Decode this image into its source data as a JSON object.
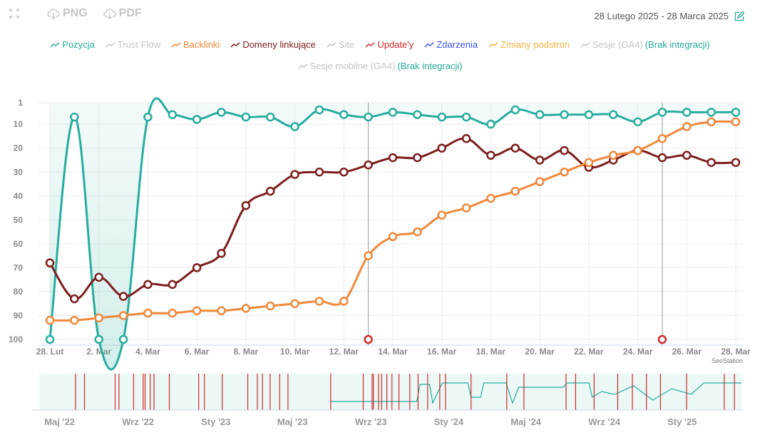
{
  "toolbar": {
    "fullscreen_icon": "expand-icon",
    "png_label": "PNG",
    "pdf_label": "PDF",
    "download_icon": "cloud-download-icon"
  },
  "date_range": {
    "label": "28 Lutego 2025 - 28 Marca 2025",
    "edit_icon": "edit-icon"
  },
  "legend": {
    "row1": [
      {
        "label": "Pozycja",
        "color": "#26ad9d"
      },
      {
        "label": "Trust Flow",
        "color": "#c4c4c4"
      },
      {
        "label": "Backlinki",
        "color": "#f0883a"
      },
      {
        "label": "Domeny linkujące",
        "color": "#7c1d1d"
      },
      {
        "label": "Site",
        "color": "#c4c4c4"
      },
      {
        "label": "Update'y",
        "color": "#d0282a"
      },
      {
        "label": "Zdarzenia",
        "color": "#3a55ee"
      },
      {
        "label": "Zmiany podstron",
        "color": "#f5b342"
      },
      {
        "label": "Sesje (GA4)",
        "color": "#c4c4c4",
        "note": "(Brak integracji)"
      }
    ],
    "row2": [
      {
        "label": "Sesje mobilne (GA4)",
        "color": "#c4c4c4",
        "note": "(Brak integracji)"
      }
    ]
  },
  "chart_data": {
    "type": "line",
    "x": [
      "28. Lut",
      "1. Mar",
      "2. Mar",
      "3. Mar",
      "4. Mar",
      "5. Mar",
      "6. Mar",
      "7. Mar",
      "8. Mar",
      "9. Mar",
      "10. Mar",
      "11. Mar",
      "12. Mar",
      "13. Mar",
      "14. Mar",
      "15. Mar",
      "16. Mar",
      "17. Mar",
      "18. Mar",
      "19. Mar",
      "20. Mar",
      "21. Mar",
      "22. Mar",
      "23. Mar",
      "24. Mar",
      "25. Mar",
      "26. Mar",
      "27. Mar",
      "28. Mar"
    ],
    "x_tick_labels": [
      "28. Lut",
      "2. Mar",
      "4. Mar",
      "6. Mar",
      "8. Mar",
      "10. Mar",
      "12. Mar",
      "14. Mar",
      "16. Mar",
      "18. Mar",
      "20. Mar",
      "22. Mar",
      "24. Mar",
      "26. Mar",
      "28. Mar"
    ],
    "y_ticks": [
      1,
      10,
      20,
      30,
      40,
      50,
      60,
      70,
      80,
      90,
      100
    ],
    "ylim": [
      1,
      100
    ],
    "y_reversed": true,
    "series": [
      {
        "name": "Pozycja",
        "color": "#26ad9d",
        "area": true,
        "values": [
          100,
          7,
          100,
          100,
          7,
          6,
          8,
          5,
          7,
          7,
          11,
          4,
          6,
          7,
          5,
          6,
          7,
          7,
          10,
          4,
          6,
          6,
          6,
          6,
          9,
          5,
          5,
          5,
          5
        ]
      },
      {
        "name": "Domeny linkujące",
        "color": "#7c1d1d",
        "values": [
          68,
          83,
          74,
          82,
          77,
          77,
          70,
          64,
          44,
          38,
          31,
          30,
          30,
          27,
          24,
          24,
          20,
          16,
          23,
          20,
          25,
          21,
          28,
          25,
          21,
          24,
          23,
          26,
          26
        ]
      },
      {
        "name": "Backlinki",
        "color": "#f0883a",
        "values": [
          92,
          92,
          91,
          90,
          89,
          89,
          88,
          88,
          87,
          86,
          85,
          84,
          84,
          65,
          57,
          55,
          48,
          45,
          41,
          38,
          34,
          30,
          26,
          23,
          21,
          16,
          11,
          9,
          9
        ]
      }
    ],
    "updates": {
      "name": "Update'y",
      "color": "#d0282a",
      "indices": [
        13,
        25
      ],
      "value": 100
    },
    "credit": "SeoStation"
  },
  "navigator": {
    "axis_labels": [
      "Maj '22",
      "Wrz '22",
      "Sty '23",
      "Maj '23",
      "Wrz '23",
      "Sty '24",
      "Maj '24",
      "Wrz '24",
      "Sty '25"
    ],
    "axis_label_days": [
      0,
      123,
      245,
      365,
      488,
      610,
      731,
      854,
      976
    ],
    "range_days": [
      -32,
      1069
    ],
    "update_days": [
      25,
      39,
      87,
      93,
      116,
      131,
      134,
      142,
      148,
      172,
      218,
      227,
      255,
      295,
      310,
      318,
      330,
      345,
      358,
      425,
      476,
      490,
      492,
      500,
      505,
      513,
      521,
      532,
      549,
      562,
      577,
      596,
      605,
      645,
      701,
      728,
      794,
      809,
      838,
      875,
      898,
      920,
      942,
      983,
      1042,
      1058
    ],
    "position_steps": [
      [
        425,
        0.25
      ],
      [
        560,
        0.25
      ],
      [
        565,
        0.85
      ],
      [
        580,
        0.85
      ],
      [
        585,
        0.2
      ],
      [
        600,
        0.9
      ],
      [
        640,
        0.9
      ],
      [
        645,
        0.4
      ],
      [
        660,
        0.4
      ],
      [
        665,
        0.9
      ],
      [
        700,
        0.9
      ],
      [
        710,
        0.2
      ],
      [
        720,
        0.75
      ],
      [
        790,
        0.75
      ],
      [
        795,
        0.9
      ],
      [
        830,
        0.9
      ],
      [
        835,
        0.4
      ],
      [
        850,
        0.6
      ],
      [
        870,
        0.5
      ],
      [
        900,
        0.8
      ],
      [
        930,
        0.3
      ],
      [
        960,
        0.7
      ],
      [
        990,
        0.5
      ],
      [
        1010,
        0.9
      ],
      [
        1069,
        0.9
      ]
    ]
  }
}
